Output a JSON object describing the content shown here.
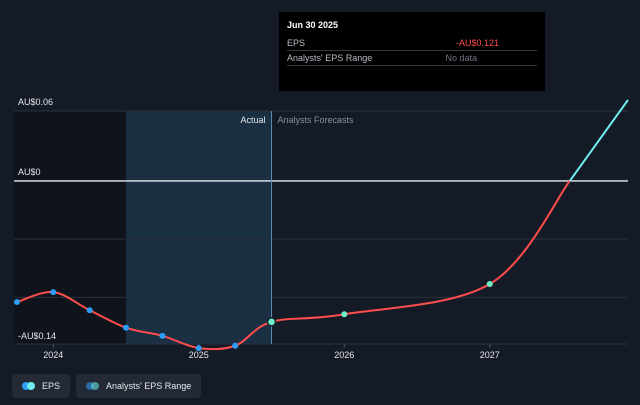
{
  "chart_data": {
    "type": "line",
    "y_labels": {
      "top": "AU$0.06",
      "zero": "AU$0",
      "bottom": "-AU$0.14"
    },
    "x_ticks": [
      {
        "label": "2024",
        "x": 2024.0
      },
      {
        "label": "2025",
        "x": 2025.0
      },
      {
        "label": "2026",
        "x": 2026.0
      },
      {
        "label": "2027",
        "x": 2027.0
      }
    ],
    "ylim": [
      -0.14,
      0.06
    ],
    "xlim": [
      2023.73,
      2027.95
    ],
    "grid": true,
    "regions": {
      "actual_label": "Actual",
      "forecast_label": "Analysts Forecasts",
      "actual_start": 2024.5,
      "divider": 2025.5
    },
    "series": [
      {
        "name": "EPS",
        "color": "#ff4d4d",
        "points": [
          {
            "x": 2023.75,
            "y": -0.104,
            "marker": "blue"
          },
          {
            "x": 2024.0,
            "y": -0.0955,
            "marker": "blue"
          },
          {
            "x": 2024.25,
            "y": -0.111,
            "marker": "blue"
          },
          {
            "x": 2024.5,
            "y": -0.126,
            "marker": "blue"
          },
          {
            "x": 2024.75,
            "y": -0.133,
            "marker": "blue"
          },
          {
            "x": 2025.0,
            "y": -0.1435,
            "marker": "blue"
          },
          {
            "x": 2025.25,
            "y": -0.1415,
            "marker": "blue"
          },
          {
            "x": 2025.5,
            "y": -0.121,
            "marker": "highlight"
          },
          {
            "x": 2026.0,
            "y": -0.1145,
            "marker": "teal"
          },
          {
            "x": 2027.0,
            "y": -0.0885,
            "marker": "teal"
          },
          {
            "x": 2027.55,
            "y": 0.0,
            "marker": "none"
          }
        ]
      },
      {
        "name": "EPS (positive)",
        "color": "#6ff0f0",
        "points": [
          {
            "x": 2027.55,
            "y": 0.0
          },
          {
            "x": 2027.95,
            "y": 0.0695
          }
        ]
      }
    ],
    "tooltip": {
      "date": "Jun 30 2025",
      "rows": [
        {
          "label": "EPS",
          "value": "-AU$0.121"
        },
        {
          "label": "Analysts' EPS Range",
          "value": "No data"
        }
      ]
    },
    "legend": [
      {
        "label": "EPS",
        "colors": [
          "#2e9df7",
          "#6ff0f0"
        ]
      },
      {
        "label": "Analysts' EPS Range",
        "colors": [
          "#2e9df7",
          "#6ff0f0"
        ]
      }
    ],
    "colors": {
      "background": "#151b26",
      "actual_shade": "#0f141c",
      "forecast_band": "#1b3246",
      "gridline": "#2a313d",
      "zero_line": "#e8ebf0",
      "marker_blue": "#2e9df7",
      "marker_teal": "#6ff0c8"
    }
  }
}
